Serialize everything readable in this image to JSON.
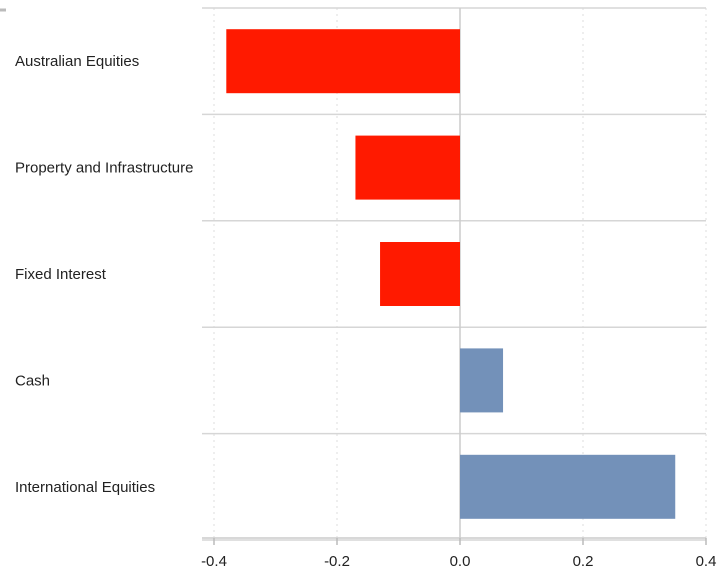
{
  "chart_data": {
    "type": "bar",
    "orientation": "horizontal",
    "title": "",
    "xlabel": "",
    "ylabel": "",
    "categories": [
      "Australian Equities",
      "Property and Infrastructure",
      "Fixed Interest",
      "Cash",
      "International Equities"
    ],
    "values": [
      -0.38,
      -0.17,
      -0.13,
      0.07,
      0.35
    ],
    "xlim": [
      -0.4,
      0.4
    ],
    "xticks": [
      -0.4,
      -0.2,
      0.0,
      0.2,
      0.4
    ],
    "xtick_labels": [
      "-0.4",
      "-0.2",
      "0.0",
      "0.2",
      "0.4"
    ],
    "grid": true,
    "colors": {
      "negative": "#ff1a00",
      "positive": "#7391b9"
    }
  }
}
